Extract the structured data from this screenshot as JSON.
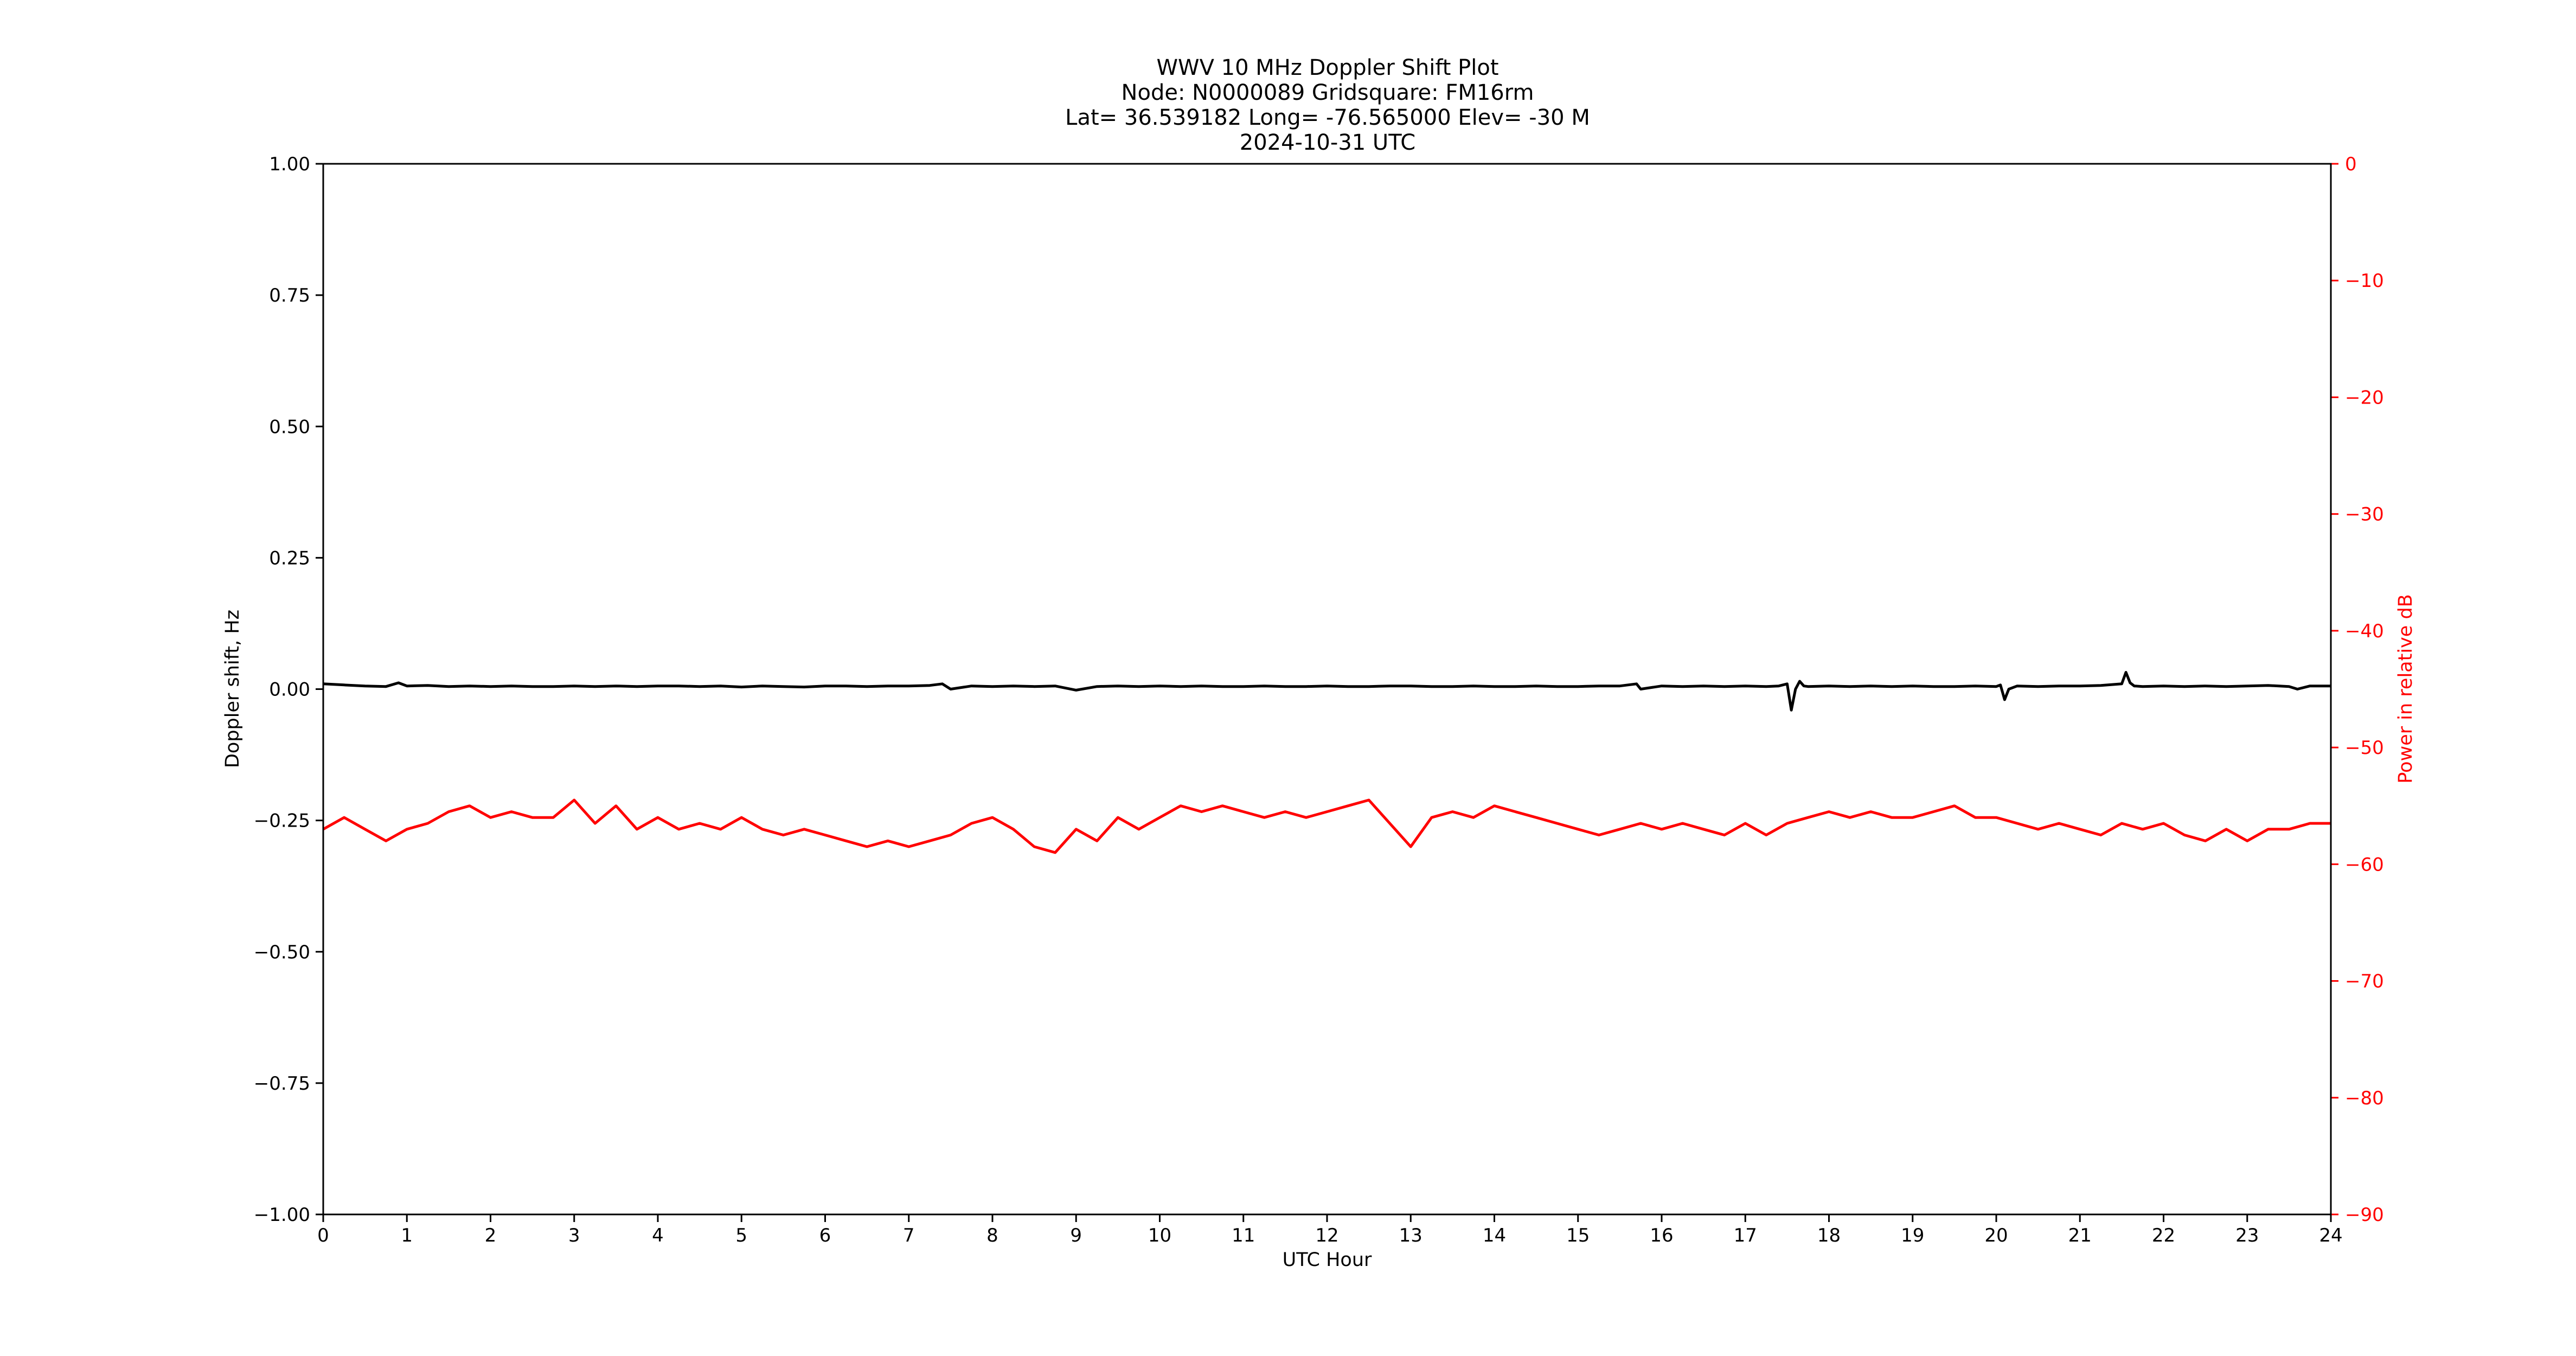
{
  "chart_data": {
    "type": "line",
    "title_lines": [
      "WWV 10 MHz Doppler Shift Plot",
      "Node:  N0000089     Gridsquare:  FM16rm",
      "Lat= 36.539182    Long= -76.565000    Elev= -30 M",
      "2024-10-31  UTC"
    ],
    "xlabel": "UTC Hour",
    "ylabel": "Doppler shift, Hz",
    "y2label": "Power in relative dB",
    "xlim": [
      0,
      24
    ],
    "ylim": [
      -1.0,
      1.0
    ],
    "y2lim": [
      -90,
      0
    ],
    "y2_inverted": true,
    "grid": false,
    "x_ticks": [
      "0",
      "1",
      "2",
      "3",
      "4",
      "5",
      "6",
      "7",
      "8",
      "9",
      "10",
      "11",
      "12",
      "13",
      "14",
      "15",
      "16",
      "17",
      "18",
      "19",
      "20",
      "21",
      "22",
      "23",
      "24"
    ],
    "y_ticks": [
      "1.00",
      "0.75",
      "0.50",
      "0.25",
      "0.00",
      "−0.25",
      "−0.50",
      "−0.75",
      "−1.00"
    ],
    "y2_ticks": [
      "0",
      "−10",
      "−20",
      "−30",
      "−40",
      "−50",
      "−60",
      "−70",
      "−80",
      "−90"
    ],
    "series": [
      {
        "axis": "left",
        "color": "#000000",
        "x": [
          0,
          0.25,
          0.5,
          0.75,
          0.9,
          1,
          1.25,
          1.5,
          1.75,
          2,
          2.25,
          2.5,
          2.75,
          3,
          3.25,
          3.5,
          3.75,
          4,
          4.25,
          4.5,
          4.75,
          5,
          5.25,
          5.5,
          5.75,
          6,
          6.25,
          6.5,
          6.75,
          7,
          7.25,
          7.4,
          7.5,
          7.75,
          8,
          8.25,
          8.5,
          8.75,
          9,
          9.25,
          9.5,
          9.75,
          10,
          10.25,
          10.5,
          10.75,
          11,
          11.25,
          11.5,
          11.75,
          12,
          12.25,
          12.5,
          12.75,
          13,
          13.25,
          13.5,
          13.75,
          14,
          14.25,
          14.5,
          14.75,
          15,
          15.25,
          15.5,
          15.7,
          15.75,
          16,
          16.25,
          16.5,
          16.75,
          17,
          17.25,
          17.4,
          17.5,
          17.55,
          17.6,
          17.65,
          17.7,
          17.75,
          18,
          18.25,
          18.5,
          18.75,
          19,
          19.25,
          19.5,
          19.75,
          20,
          20.05,
          20.1,
          20.15,
          20.25,
          20.5,
          20.75,
          21,
          21.25,
          21.5,
          21.55,
          21.6,
          21.65,
          21.75,
          22,
          22.25,
          22.5,
          22.75,
          23,
          23.25,
          23.5,
          23.6,
          23.75,
          24
        ],
        "y": [
          0.01,
          0.008,
          0.006,
          0.005,
          0.012,
          0.006,
          0.007,
          0.005,
          0.006,
          0.005,
          0.006,
          0.005,
          0.005,
          0.006,
          0.005,
          0.006,
          0.005,
          0.006,
          0.006,
          0.005,
          0.006,
          0.004,
          0.006,
          0.005,
          0.004,
          0.006,
          0.006,
          0.005,
          0.006,
          0.006,
          0.007,
          0.01,
          0.0,
          0.006,
          0.005,
          0.006,
          0.005,
          0.006,
          -0.002,
          0.005,
          0.006,
          0.005,
          0.006,
          0.005,
          0.006,
          0.005,
          0.005,
          0.006,
          0.005,
          0.005,
          0.006,
          0.005,
          0.005,
          0.006,
          0.006,
          0.005,
          0.005,
          0.006,
          0.005,
          0.005,
          0.006,
          0.005,
          0.005,
          0.006,
          0.006,
          0.01,
          0.0,
          0.006,
          0.005,
          0.006,
          0.005,
          0.006,
          0.005,
          0.006,
          0.01,
          -0.04,
          0.0,
          0.015,
          0.006,
          0.005,
          0.006,
          0.005,
          0.006,
          0.005,
          0.006,
          0.005,
          0.005,
          0.006,
          0.005,
          0.008,
          -0.02,
          0.0,
          0.006,
          0.005,
          0.006,
          0.006,
          0.007,
          0.01,
          0.032,
          0.012,
          0.006,
          0.005,
          0.006,
          0.005,
          0.006,
          0.005,
          0.006,
          0.007,
          0.005,
          0.0,
          0.006,
          0.006
        ]
      },
      {
        "axis": "right",
        "color": "#ff0000",
        "x": [
          0,
          0.25,
          0.5,
          0.75,
          1,
          1.25,
          1.5,
          1.75,
          2,
          2.25,
          2.5,
          2.75,
          3,
          3.25,
          3.5,
          3.75,
          4,
          4.25,
          4.5,
          4.75,
          5,
          5.25,
          5.5,
          5.75,
          6,
          6.25,
          6.5,
          6.75,
          7,
          7.25,
          7.5,
          7.75,
          8,
          8.25,
          8.5,
          8.75,
          9,
          9.25,
          9.5,
          9.75,
          10,
          10.25,
          10.5,
          10.75,
          11,
          11.25,
          11.5,
          11.75,
          12,
          12.25,
          12.5,
          12.75,
          13,
          13.25,
          13.5,
          13.75,
          14,
          14.25,
          14.5,
          14.75,
          15,
          15.25,
          15.5,
          15.75,
          16,
          16.25,
          16.5,
          16.75,
          17,
          17.25,
          17.5,
          17.75,
          18,
          18.25,
          18.5,
          18.75,
          19,
          19.25,
          19.5,
          19.75,
          20,
          20.25,
          20.5,
          20.75,
          21,
          21.25,
          21.5,
          21.75,
          22,
          22.25,
          22.5,
          22.75,
          23,
          23.25,
          23.5,
          23.75,
          24
        ],
        "y": [
          -57,
          -56,
          -57,
          -58,
          -57,
          -56.5,
          -55.5,
          -55,
          -56,
          -55.5,
          -56,
          -56,
          -54.5,
          -56.5,
          -55,
          -57,
          -56,
          -57,
          -56.5,
          -57,
          -56,
          -57,
          -57.5,
          -57,
          -57.5,
          -58,
          -58.5,
          -58,
          -58.5,
          -58,
          -57.5,
          -56.5,
          -56,
          -57,
          -58.5,
          -59,
          -57,
          -58,
          -56,
          -57,
          -56,
          -55,
          -55.5,
          -55,
          -55.5,
          -56,
          -55.5,
          -56,
          -55.5,
          -55,
          -54.5,
          -56.5,
          -58.5,
          -56,
          -55.5,
          -56,
          -55,
          -55.5,
          -56,
          -56.5,
          -57,
          -57.5,
          -57,
          -56.5,
          -57,
          -56.5,
          -57,
          -57.5,
          -56.5,
          -57.5,
          -56.5,
          -56,
          -55.5,
          -56,
          -55.5,
          -56,
          -56,
          -55.5,
          -55,
          -56,
          -56,
          -56.5,
          -57,
          -56.5,
          -57,
          -57.5,
          -56.5,
          -57,
          -56.5,
          -57.5,
          -58,
          -57,
          -58,
          -57,
          -57,
          -56.5,
          -56.5
        ]
      }
    ]
  }
}
